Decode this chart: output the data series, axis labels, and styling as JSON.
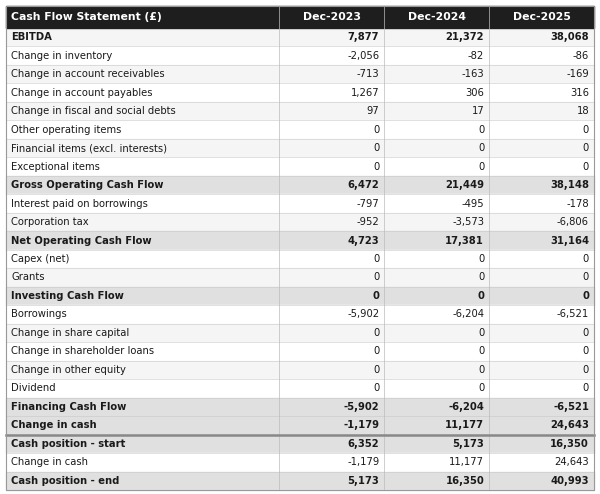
{
  "title_col": "Cash Flow Statement (£)",
  "col_headers": [
    "Dec-2023",
    "Dec-2024",
    "Dec-2025"
  ],
  "header_bg": "#1e1e1e",
  "header_fg": "#ffffff",
  "bold_row_bg": "#e0e0e0",
  "alt_row_bg": "#f5f5f5",
  "white_row_bg": "#ffffff",
  "separator_top_bg": "#c8c8c8",
  "rows": [
    {
      "label": "EBITDA",
      "values": [
        "7,877",
        "21,372",
        "38,068"
      ],
      "bold": true,
      "bg": "alt"
    },
    {
      "label": "Change in inventory",
      "values": [
        "-2,056",
        "-82",
        "-86"
      ],
      "bold": false,
      "bg": "white"
    },
    {
      "label": "Change in account receivables",
      "values": [
        "-713",
        "-163",
        "-169"
      ],
      "bold": false,
      "bg": "alt"
    },
    {
      "label": "Change in account payables",
      "values": [
        "1,267",
        "306",
        "316"
      ],
      "bold": false,
      "bg": "white"
    },
    {
      "label": "Change in fiscal and social debts",
      "values": [
        "97",
        "17",
        "18"
      ],
      "bold": false,
      "bg": "alt"
    },
    {
      "label": "Other operating items",
      "values": [
        "0",
        "0",
        "0"
      ],
      "bold": false,
      "bg": "white"
    },
    {
      "label": "Financial items (excl. interests)",
      "values": [
        "0",
        "0",
        "0"
      ],
      "bold": false,
      "bg": "alt"
    },
    {
      "label": "Exceptional items",
      "values": [
        "0",
        "0",
        "0"
      ],
      "bold": false,
      "bg": "white"
    },
    {
      "label": "Gross Operating Cash Flow",
      "values": [
        "6,472",
        "21,449",
        "38,148"
      ],
      "bold": true,
      "bg": "bold_row"
    },
    {
      "label": "Interest paid on borrowings",
      "values": [
        "-797",
        "-495",
        "-178"
      ],
      "bold": false,
      "bg": "white"
    },
    {
      "label": "Corporation tax",
      "values": [
        "-952",
        "-3,573",
        "-6,806"
      ],
      "bold": false,
      "bg": "alt"
    },
    {
      "label": "Net Operating Cash Flow",
      "values": [
        "4,723",
        "17,381",
        "31,164"
      ],
      "bold": true,
      "bg": "bold_row"
    },
    {
      "label": "Capex (net)",
      "values": [
        "0",
        "0",
        "0"
      ],
      "bold": false,
      "bg": "white"
    },
    {
      "label": "Grants",
      "values": [
        "0",
        "0",
        "0"
      ],
      "bold": false,
      "bg": "alt"
    },
    {
      "label": "Investing Cash Flow",
      "values": [
        "0",
        "0",
        "0"
      ],
      "bold": true,
      "bg": "bold_row"
    },
    {
      "label": "Borrowings",
      "values": [
        "-5,902",
        "-6,204",
        "-6,521"
      ],
      "bold": false,
      "bg": "white"
    },
    {
      "label": "Change in share capital",
      "values": [
        "0",
        "0",
        "0"
      ],
      "bold": false,
      "bg": "alt"
    },
    {
      "label": "Change in shareholder loans",
      "values": [
        "0",
        "0",
        "0"
      ],
      "bold": false,
      "bg": "white"
    },
    {
      "label": "Change in other equity",
      "values": [
        "0",
        "0",
        "0"
      ],
      "bold": false,
      "bg": "alt"
    },
    {
      "label": "Dividend",
      "values": [
        "0",
        "0",
        "0"
      ],
      "bold": false,
      "bg": "white"
    },
    {
      "label": "Financing Cash Flow",
      "values": [
        "-5,902",
        "-6,204",
        "-6,521"
      ],
      "bold": true,
      "bg": "bold_row"
    },
    {
      "label": "Change in cash",
      "values": [
        "-1,179",
        "11,177",
        "24,643"
      ],
      "bold": true,
      "bg": "bold_row"
    },
    {
      "label": "Cash position - start",
      "values": [
        "6,352",
        "5,173",
        "16,350"
      ],
      "bold": true,
      "bg": "bold_row"
    },
    {
      "label": "Change in cash",
      "values": [
        "-1,179",
        "11,177",
        "24,643"
      ],
      "bold": false,
      "bg": "white"
    },
    {
      "label": "Cash position - end",
      "values": [
        "5,173",
        "16,350",
        "40,993"
      ],
      "bold": true,
      "bg": "bold_row"
    }
  ],
  "separator_after_row": 21,
  "figwidth": 6.0,
  "figheight": 4.94,
  "dpi": 100
}
